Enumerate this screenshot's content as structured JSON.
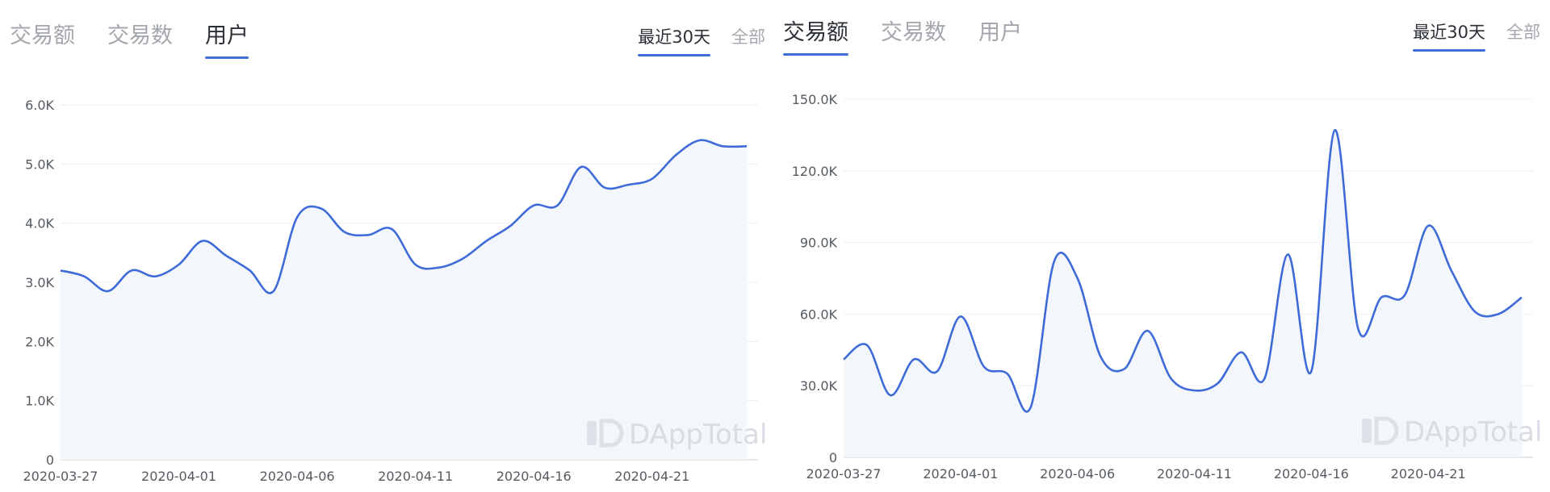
{
  "left_panel": {
    "tabs": [
      {
        "label": "交易额",
        "active": false
      },
      {
        "label": "交易数",
        "active": false
      },
      {
        "label": "用户",
        "active": true
      }
    ],
    "range": [
      {
        "label": "最近30天",
        "active": true
      },
      {
        "label": "全部",
        "active": false
      }
    ],
    "watermark": "DAppTotal"
  },
  "right_panel": {
    "tabs": [
      {
        "label": "交易额",
        "active": true
      },
      {
        "label": "交易数",
        "active": false
      },
      {
        "label": "用户",
        "active": false
      }
    ],
    "range": [
      {
        "label": "最近30天",
        "active": true
      },
      {
        "label": "全部",
        "active": false
      }
    ],
    "watermark": "DAppTotal"
  },
  "chart_data": [
    {
      "type": "area",
      "ylim": [
        0,
        6000
      ],
      "yticks": [
        0,
        1000,
        2000,
        3000,
        4000,
        5000,
        6000
      ],
      "ytick_labels": [
        "0",
        "1.0K",
        "2.0K",
        "3.0K",
        "4.0K",
        "5.0K",
        "6.0K"
      ],
      "x": [
        "2020-03-27",
        "2020-03-28",
        "2020-03-29",
        "2020-03-30",
        "2020-03-31",
        "2020-04-01",
        "2020-04-02",
        "2020-04-03",
        "2020-04-04",
        "2020-04-05",
        "2020-04-06",
        "2020-04-07",
        "2020-04-08",
        "2020-04-09",
        "2020-04-10",
        "2020-04-11",
        "2020-04-12",
        "2020-04-13",
        "2020-04-14",
        "2020-04-15",
        "2020-04-16",
        "2020-04-17",
        "2020-04-18",
        "2020-04-19",
        "2020-04-20",
        "2020-04-21",
        "2020-04-22",
        "2020-04-23",
        "2020-04-24",
        "2020-04-25"
      ],
      "xtick_labels": [
        "2020-03-27",
        "2020-04-01",
        "2020-04-06",
        "2020-04-11",
        "2020-04-16",
        "2020-04-21"
      ],
      "values": [
        3200,
        3100,
        2850,
        3200,
        3100,
        3300,
        3700,
        3450,
        3200,
        2850,
        4100,
        4250,
        3850,
        3800,
        3900,
        3300,
        3250,
        3400,
        3700,
        3950,
        4300,
        4300,
        4950,
        4600,
        4650,
        4750,
        5150,
        5400,
        5300,
        5300
      ],
      "line_color": "#3e6bd8",
      "area_color": "#f3f6fb"
    },
    {
      "type": "area",
      "ylim": [
        0,
        150000
      ],
      "yticks": [
        0,
        30000,
        60000,
        90000,
        120000,
        150000
      ],
      "ytick_labels": [
        "0",
        "30.0K",
        "60.0K",
        "90.0K",
        "120.0K",
        "150.0K"
      ],
      "x": [
        "2020-03-27",
        "2020-03-28",
        "2020-03-29",
        "2020-03-30",
        "2020-03-31",
        "2020-04-01",
        "2020-04-02",
        "2020-04-03",
        "2020-04-04",
        "2020-04-05",
        "2020-04-06",
        "2020-04-07",
        "2020-04-08",
        "2020-04-09",
        "2020-04-10",
        "2020-04-11",
        "2020-04-12",
        "2020-04-13",
        "2020-04-14",
        "2020-04-15",
        "2020-04-16",
        "2020-04-17",
        "2020-04-18",
        "2020-04-19",
        "2020-04-20",
        "2020-04-21",
        "2020-04-22",
        "2020-04-23",
        "2020-04-24",
        "2020-04-25"
      ],
      "xtick_labels": [
        "2020-03-27",
        "2020-04-01",
        "2020-04-06",
        "2020-04-11",
        "2020-04-16",
        "2020-04-21"
      ],
      "values": [
        41000,
        47000,
        26000,
        41000,
        36000,
        59000,
        38000,
        35000,
        21000,
        82000,
        75000,
        42000,
        37000,
        53000,
        33000,
        28000,
        31000,
        44000,
        33000,
        85000,
        36000,
        137000,
        54000,
        67000,
        68000,
        97000,
        78000,
        61000,
        60000,
        67000
      ],
      "line_color": "#3e6bd8",
      "area_color": "#f3f6fb"
    }
  ]
}
